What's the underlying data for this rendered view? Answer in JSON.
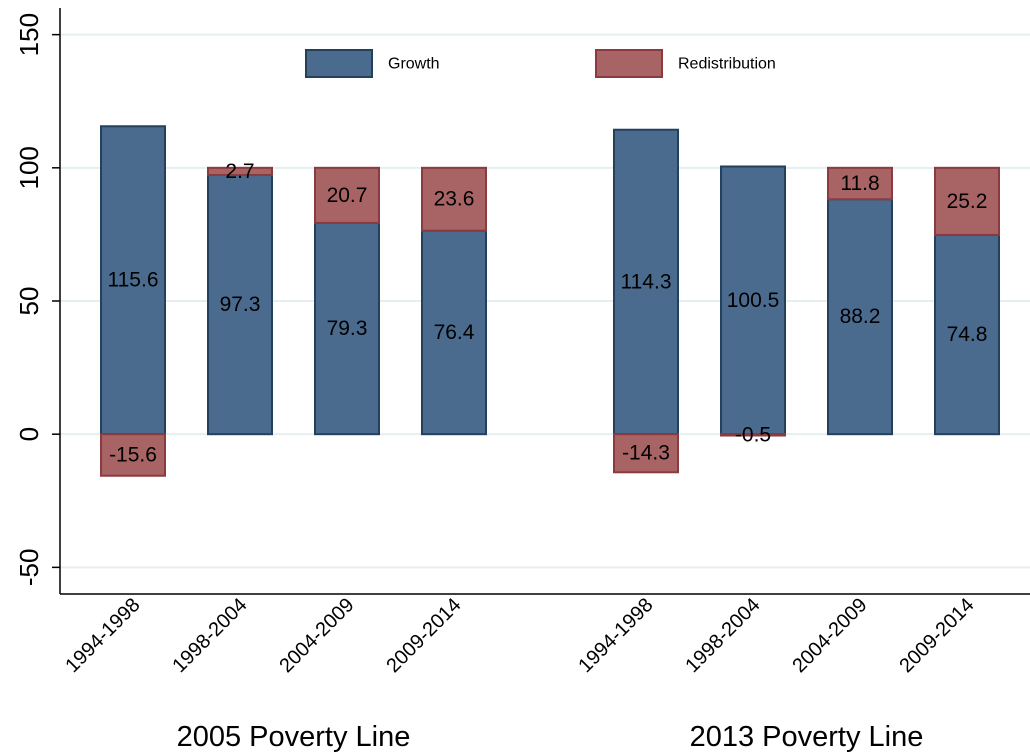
{
  "chart_data": {
    "type": "bar",
    "stacked": true,
    "ylim": [
      -60,
      160
    ],
    "yticks": [
      -50,
      0,
      50,
      100,
      150
    ],
    "grid": true,
    "legend_position": "top",
    "colors": {
      "Growth": "#4a6b8e",
      "Redistribution": "#a86464",
      "Growth_edge": "#23405f",
      "Redistribution_edge": "#8b3a40"
    },
    "groups": [
      {
        "label": "2005 Poverty Line",
        "categories": [
          "1994-1998",
          "1998-2004",
          "2004-2009",
          "2009-2014"
        ],
        "series": [
          {
            "name": "Growth",
            "values": [
              115.6,
              97.3,
              79.3,
              76.4
            ],
            "labels": [
              "115.6",
              "97.3",
              "79.3",
              "76.4"
            ]
          },
          {
            "name": "Redistribution",
            "values": [
              -15.6,
              2.7,
              20.7,
              23.6
            ],
            "labels": [
              "-15.6",
              "2.7",
              "20.7",
              "23.6"
            ]
          }
        ]
      },
      {
        "label": "2013 Poverty Line",
        "categories": [
          "1994-1998",
          "1998-2004",
          "2004-2009",
          "2009-2014"
        ],
        "series": [
          {
            "name": "Growth",
            "values": [
              114.3,
              100.5,
              88.2,
              74.8
            ],
            "labels": [
              "114.3",
              "100.5",
              "88.2",
              "74.8"
            ]
          },
          {
            "name": "Redistribution",
            "values": [
              -14.3,
              -0.5,
              11.8,
              25.2
            ],
            "labels": [
              "-14.3",
              "-0.5",
              "11.8",
              "25.2"
            ]
          }
        ]
      }
    ]
  }
}
